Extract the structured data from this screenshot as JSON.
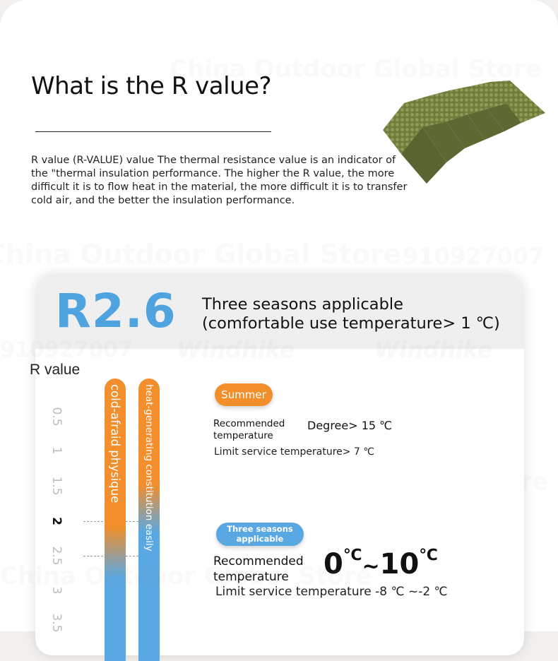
{
  "heading": "What is the R value?",
  "description": "R value (R-VALUE) value The thermal resistance value is an indicator of the \"thermal insulation performance. The higher the R value, the more difficult it is to flow heat in the material, the more difficult it is to transfer cold air, and the better the insulation performance.",
  "watermarks": [
    "China Outdoor Global Store",
    "910927007",
    "Windhike"
  ],
  "card": {
    "r_rating": "R2.6",
    "season_line1": "Three seasons applicable",
    "season_line2": "(comfortable use temperature> 1 ℃)"
  },
  "scale": {
    "label": "R value",
    "ticks": [
      "0.5",
      "1",
      "1.5",
      "2",
      "2.5",
      "3",
      "3.5"
    ],
    "highlighted": "2"
  },
  "bars": {
    "left_label": "cold-afraid physique",
    "right_label": "heat-generating constitution easily"
  },
  "summer": {
    "badge": "Summer",
    "recommended_label": "Recommended temperature",
    "degree": "Degree> 15 ℃",
    "limit": "Limit service temperature> 7 ℃"
  },
  "three_seasons": {
    "badge_line1": "Three seasons",
    "badge_line2": "applicable",
    "recommended_label": "Recommended temperature",
    "temp_low": "0",
    "temp_low_unit": "℃",
    "temp_sep": "~",
    "temp_high": "10",
    "temp_high_unit": "℃",
    "limit": "Limit service temperature -8 ℃ ~-2 ℃"
  },
  "colors": {
    "orange": "#f28e2b",
    "blue": "#5aa8e3",
    "mat_green": "#6f7d3a"
  }
}
